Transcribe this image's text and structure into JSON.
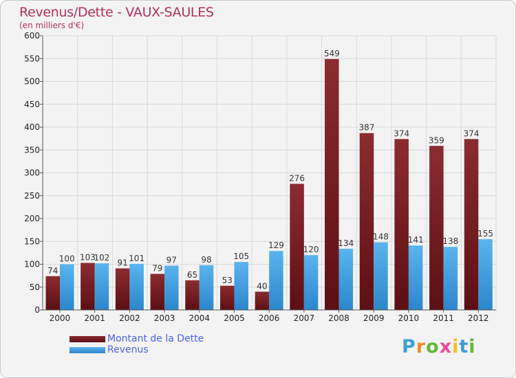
{
  "header": {
    "title": "Revenus/Dette - VAUX-SAULES",
    "subtitle": "(en milliers d'€)"
  },
  "colors": {
    "debt_top": "#8b2c30",
    "debt_bottom": "#5c0f14",
    "revenue_top": "#5ab4ee",
    "revenue_bottom": "#2c86cc",
    "grid": "#d8d8d8",
    "axis": "#555555"
  },
  "chart_data": {
    "type": "bar",
    "title": "Revenus/Dette - VAUX-SAULES",
    "ylabel": "(en milliers d'€)",
    "xlabel": "",
    "categories": [
      "2000",
      "2001",
      "2002",
      "2003",
      "2004",
      "2005",
      "2006",
      "2007",
      "2008",
      "2009",
      "2010",
      "2011",
      "2012"
    ],
    "series": [
      {
        "name": "Montant de la Dette",
        "values": [
          74,
          103,
          91,
          79,
          65,
          53,
          40,
          276,
          549,
          387,
          374,
          359,
          374
        ]
      },
      {
        "name": "Revenus",
        "values": [
          100,
          102,
          101,
          97,
          98,
          105,
          129,
          120,
          134,
          148,
          141,
          138,
          155
        ]
      }
    ],
    "ylim": [
      0,
      600
    ],
    "yticks": [
      0,
      50,
      100,
      150,
      200,
      250,
      300,
      350,
      400,
      450,
      500,
      550,
      600
    ],
    "grid": true,
    "legend": "bottom-left"
  },
  "legend": {
    "items": [
      {
        "label": "Montant de la Dette"
      },
      {
        "label": "Revenus"
      }
    ]
  },
  "logo": {
    "letters": [
      "P",
      "r",
      "o",
      "x",
      "i",
      "t",
      "i"
    ],
    "colors": [
      "#3aa0d8",
      "#f08a2a",
      "#66b838",
      "#e84a9a",
      "#f0c020",
      "#3aa0d8",
      "#66b838"
    ]
  }
}
